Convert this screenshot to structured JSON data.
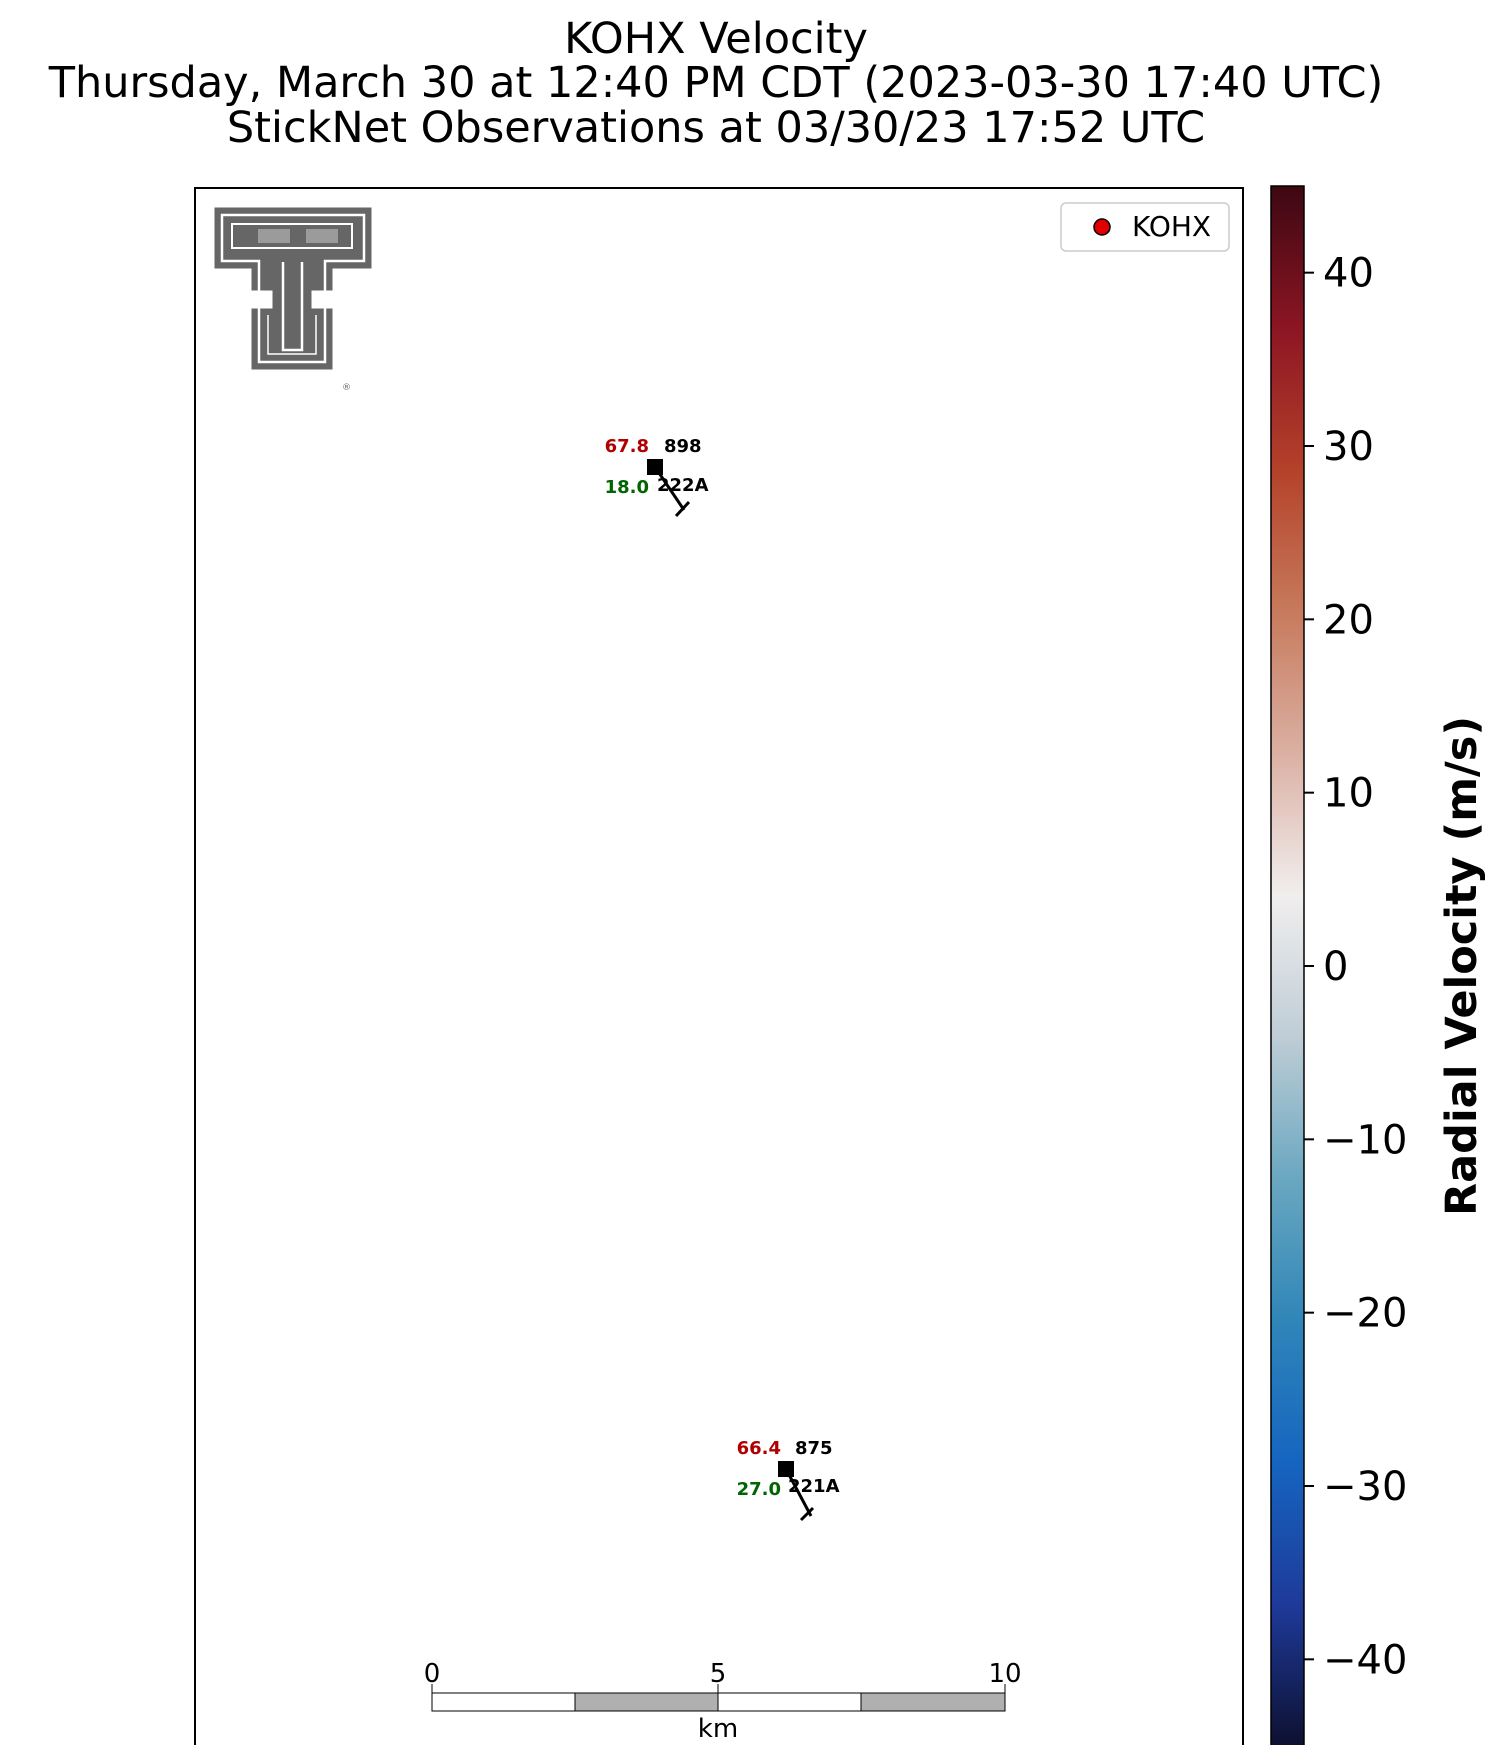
{
  "title": {
    "line1": "KOHX Velocity",
    "line2": "Thursday, March 30 at 12:40 PM CDT (2023-03-30 17:40 UTC)",
    "line3": "StickNet Observations at 03/30/23 17:52 UTC"
  },
  "legend": {
    "label": "KOHX",
    "marker_color": "#e00000",
    "placement": "upper-right"
  },
  "logo": {
    "name": "texas-tech-double-t-logo",
    "color": "#666666"
  },
  "chart_data": {
    "type": "scatter",
    "title": "KOHX Velocity",
    "stations": [
      {
        "id": "222A",
        "temperature": "67.8",
        "pressure": "898",
        "dewpoint": "18.0",
        "temperature_color": "#b00000",
        "dewpoint_color": "#006400"
      },
      {
        "id": "221A",
        "temperature": "66.4",
        "pressure": "875",
        "dewpoint": "27.0",
        "temperature_color": "#b00000",
        "dewpoint_color": "#006400"
      }
    ],
    "scale_bar": {
      "unit": "km",
      "ticks": [
        "0",
        "5",
        "10"
      ],
      "max_km": 10
    },
    "colorbar": {
      "label": "Radial Velocity (m/s)",
      "range": [
        -45,
        45
      ],
      "ticks": [
        40,
        30,
        20,
        10,
        0,
        -10,
        -20,
        -30,
        -40
      ],
      "tick_labels": [
        "40",
        "30",
        "20",
        "10",
        "0",
        "−10",
        "−20",
        "−30",
        "−40"
      ],
      "colors": [
        "#0d1030",
        "#1e3a9a",
        "#1565c0",
        "#2f86b8",
        "#6aa7c0",
        "#bfcdd6",
        "#f1eeee",
        "#dbb0a3",
        "#c77a5c",
        "#b4412a",
        "#8c1523",
        "#3c0812"
      ]
    }
  }
}
